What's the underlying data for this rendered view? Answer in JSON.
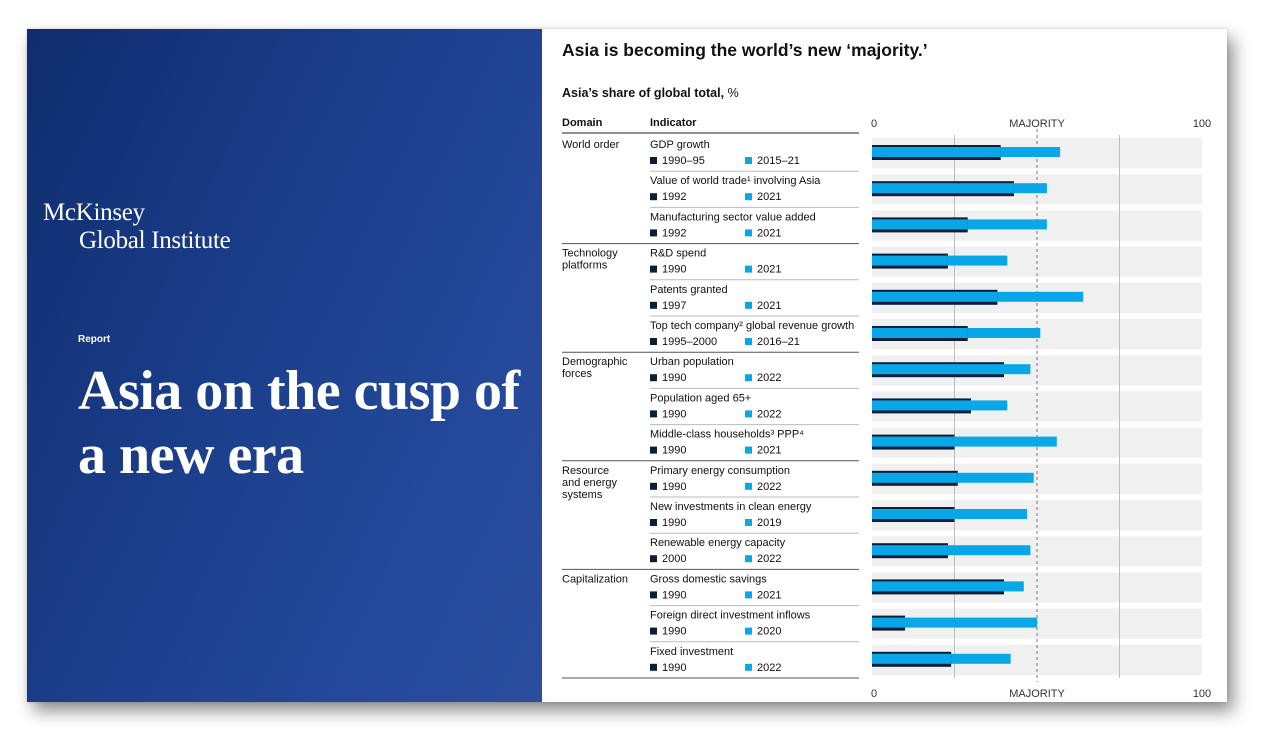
{
  "cover": {
    "brand_line1": "McKinsey",
    "brand_line2": "Global Institute",
    "doc_type": "Report",
    "title": "Asia on the cusp of a new era"
  },
  "panel": {
    "heading": "Asia is becoming the world’s new ‘majority.’",
    "subheading": "Asia’s share of global total,",
    "subheading_unit": "%",
    "col_domain": "Domain",
    "col_indicator": "Indicator"
  },
  "colors": {
    "early": "#0b1f3a",
    "late": "#0aa7e8",
    "track": "#f0f0f0",
    "navy_bg": "#1c3f8c"
  },
  "chart_data": {
    "type": "bar",
    "orientation": "horizontal",
    "title": "Asia is becoming the world’s new ‘majority.’",
    "subtitle": "Asia’s share of global total, %",
    "xlim": [
      0,
      100
    ],
    "x_tick_labels": [
      "0",
      "MAJORITY",
      "100"
    ],
    "majority_line": 50,
    "grid": "vertical lines at 25, 50 (dashed), 75",
    "legend": "per-row inline year labels",
    "rows": [
      {
        "domain": "World order",
        "indicator": "GDP growth",
        "early_year": "1990–95",
        "late_year": "2015–21",
        "early": 39,
        "late": 57
      },
      {
        "domain": "",
        "indicator": "Value of world trade¹ involving Asia",
        "early_year": "1992",
        "late_year": "2021",
        "early": 43,
        "late": 53
      },
      {
        "domain": "",
        "indicator": "Manufacturing sector value added",
        "early_year": "1992",
        "late_year": "2021",
        "early": 29,
        "late": 53
      },
      {
        "domain": "Technology\nplatforms",
        "indicator": "R&D spend",
        "early_year": "1990",
        "late_year": "2021",
        "early": 23,
        "late": 41
      },
      {
        "domain": "",
        "indicator": "Patents granted",
        "early_year": "1997",
        "late_year": "2021",
        "early": 38,
        "late": 64
      },
      {
        "domain": "",
        "indicator": "Top tech company² global revenue growth",
        "early_year": "1995–2000",
        "late_year": "2016–21",
        "early": 29,
        "late": 51
      },
      {
        "domain": "Demographic\nforces",
        "indicator": "Urban population",
        "early_year": "1990",
        "late_year": "2022",
        "early": 40,
        "late": 48
      },
      {
        "domain": "",
        "indicator": "Population aged 65+",
        "early_year": "1990",
        "late_year": "2022",
        "early": 30,
        "late": 41
      },
      {
        "domain": "",
        "indicator": "Middle-class households³ PPP⁴",
        "early_year": "1990",
        "late_year": "2021",
        "early": 25,
        "late": 56
      },
      {
        "domain": "Resource\nand energy\nsystems",
        "indicator": "Primary energy consumption",
        "early_year": "1990",
        "late_year": "2022",
        "early": 26,
        "late": 49
      },
      {
        "domain": "",
        "indicator": "New investments in clean energy",
        "early_year": "1990",
        "late_year": "2019",
        "early": 25,
        "late": 47
      },
      {
        "domain": "",
        "indicator": "Renewable energy capacity",
        "early_year": "2000",
        "late_year": "2022",
        "early": 23,
        "late": 48
      },
      {
        "domain": "Capitalization",
        "indicator": "Gross domestic savings",
        "early_year": "1990",
        "late_year": "2021",
        "early": 40,
        "late": 46
      },
      {
        "domain": "",
        "indicator": "Foreign direct investment inflows",
        "early_year": "1990",
        "late_year": "2020",
        "early": 10,
        "late": 50
      },
      {
        "domain": "",
        "indicator": "Fixed investment",
        "early_year": "1990",
        "late_year": "2022",
        "early": 24,
        "late": 42
      }
    ]
  }
}
